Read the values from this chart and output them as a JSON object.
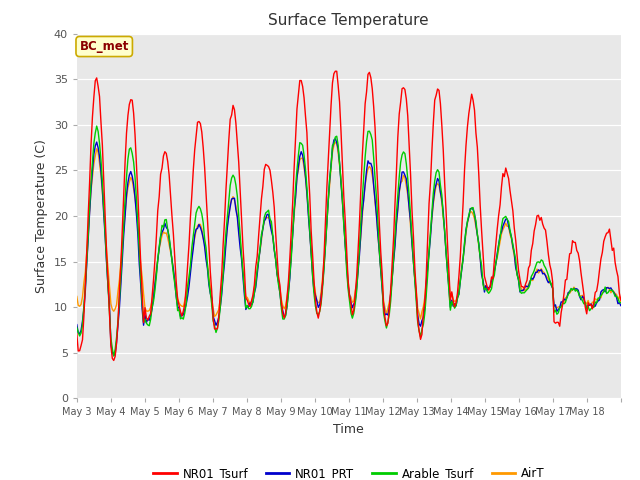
{
  "title": "Surface Temperature",
  "ylabel": "Surface Temperature (C)",
  "xlabel": "Time",
  "ylim": [
    0,
    40
  ],
  "bg_color": "#e8e8e8",
  "fig_color": "#ffffff",
  "annotation_text": "BC_met",
  "annotation_color": "#8b0000",
  "annotation_bg": "#ffffcc",
  "series_colors": [
    "#ff0000",
    "#0000cc",
    "#00cc00",
    "#ff9900"
  ],
  "series_labels": [
    "NR01_Tsurf",
    "NR01_PRT",
    "Arable_Tsurf",
    "AirT"
  ],
  "xtick_labels": [
    "May 3",
    "May 4",
    "May 5",
    "May 6",
    "May 7",
    "May 8",
    "May 9",
    "May 10",
    "May 11",
    "May 12",
    "May 13",
    "May 14",
    "May 15",
    "May 16",
    "May 17",
    "May 18"
  ],
  "n_days": 16,
  "hours_per_day": 24,
  "day_peaks_r": [
    35,
    33,
    27,
    30.5,
    32,
    26,
    35,
    36,
    36,
    34.5,
    34,
    33,
    25,
    20,
    17,
    18
  ],
  "day_mins_r": [
    5,
    4,
    8.5,
    9,
    7.5,
    10,
    9,
    9,
    9.5,
    8,
    7,
    10,
    12,
    12,
    8,
    10
  ],
  "day_peaks_b": [
    28,
    25,
    19,
    19,
    22,
    20,
    27,
    28.5,
    26,
    25,
    24,
    21,
    19.5,
    14,
    12,
    12
  ],
  "day_mins_b": [
    7,
    5,
    8.5,
    9,
    8,
    10,
    9,
    10,
    10,
    9,
    8,
    10,
    12,
    12,
    10,
    10
  ],
  "day_peaks_g": [
    29.5,
    27.5,
    19.5,
    21,
    24.5,
    20.5,
    28,
    29,
    29.5,
    27,
    25,
    21,
    20,
    15,
    12,
    12
  ],
  "day_mins_g": [
    6.5,
    5,
    8,
    8.5,
    7.5,
    10,
    8.5,
    9,
    9,
    8,
    7,
    10,
    11.5,
    11.5,
    9.5,
    10
  ],
  "day_peaks_o": [
    27,
    24,
    18.5,
    19,
    22,
    20,
    26.5,
    28,
    25.5,
    24.5,
    23.5,
    20.5,
    19,
    14,
    12,
    12
  ],
  "day_mins_o": [
    10,
    9.5,
    9.5,
    10,
    9,
    10.5,
    10,
    10.5,
    10.5,
    9.5,
    9,
    10.5,
    12,
    12,
    10,
    10.5
  ],
  "peak_hour": 14,
  "trough_hour": 5
}
